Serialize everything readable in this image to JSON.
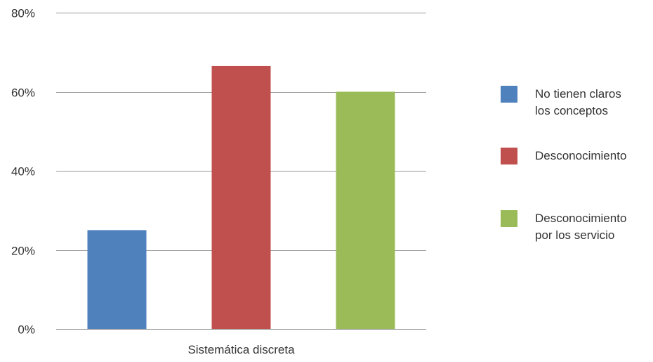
{
  "chart_data": {
    "type": "bar",
    "categories": [
      "Sistemática discreta"
    ],
    "series": [
      {
        "name": [
          "No tienen claros",
          "los conceptos"
        ],
        "values": [
          25
        ],
        "color": "#4f81bd"
      },
      {
        "name": [
          "Desconocimiento"
        ],
        "values": [
          66.5
        ],
        "color": "#c0504d"
      },
      {
        "name": [
          "Desconocimiento",
          "por los servicio"
        ],
        "values": [
          60
        ],
        "color": "#9bbb59"
      }
    ],
    "ylim": [
      0,
      80
    ],
    "yticks": [
      0,
      20,
      40,
      60,
      80
    ],
    "ytick_labels": [
      "0%",
      "20%",
      "40%",
      "60%",
      "80%"
    ],
    "grid": true,
    "legend_position": "right",
    "gridline_color": "#999999"
  }
}
